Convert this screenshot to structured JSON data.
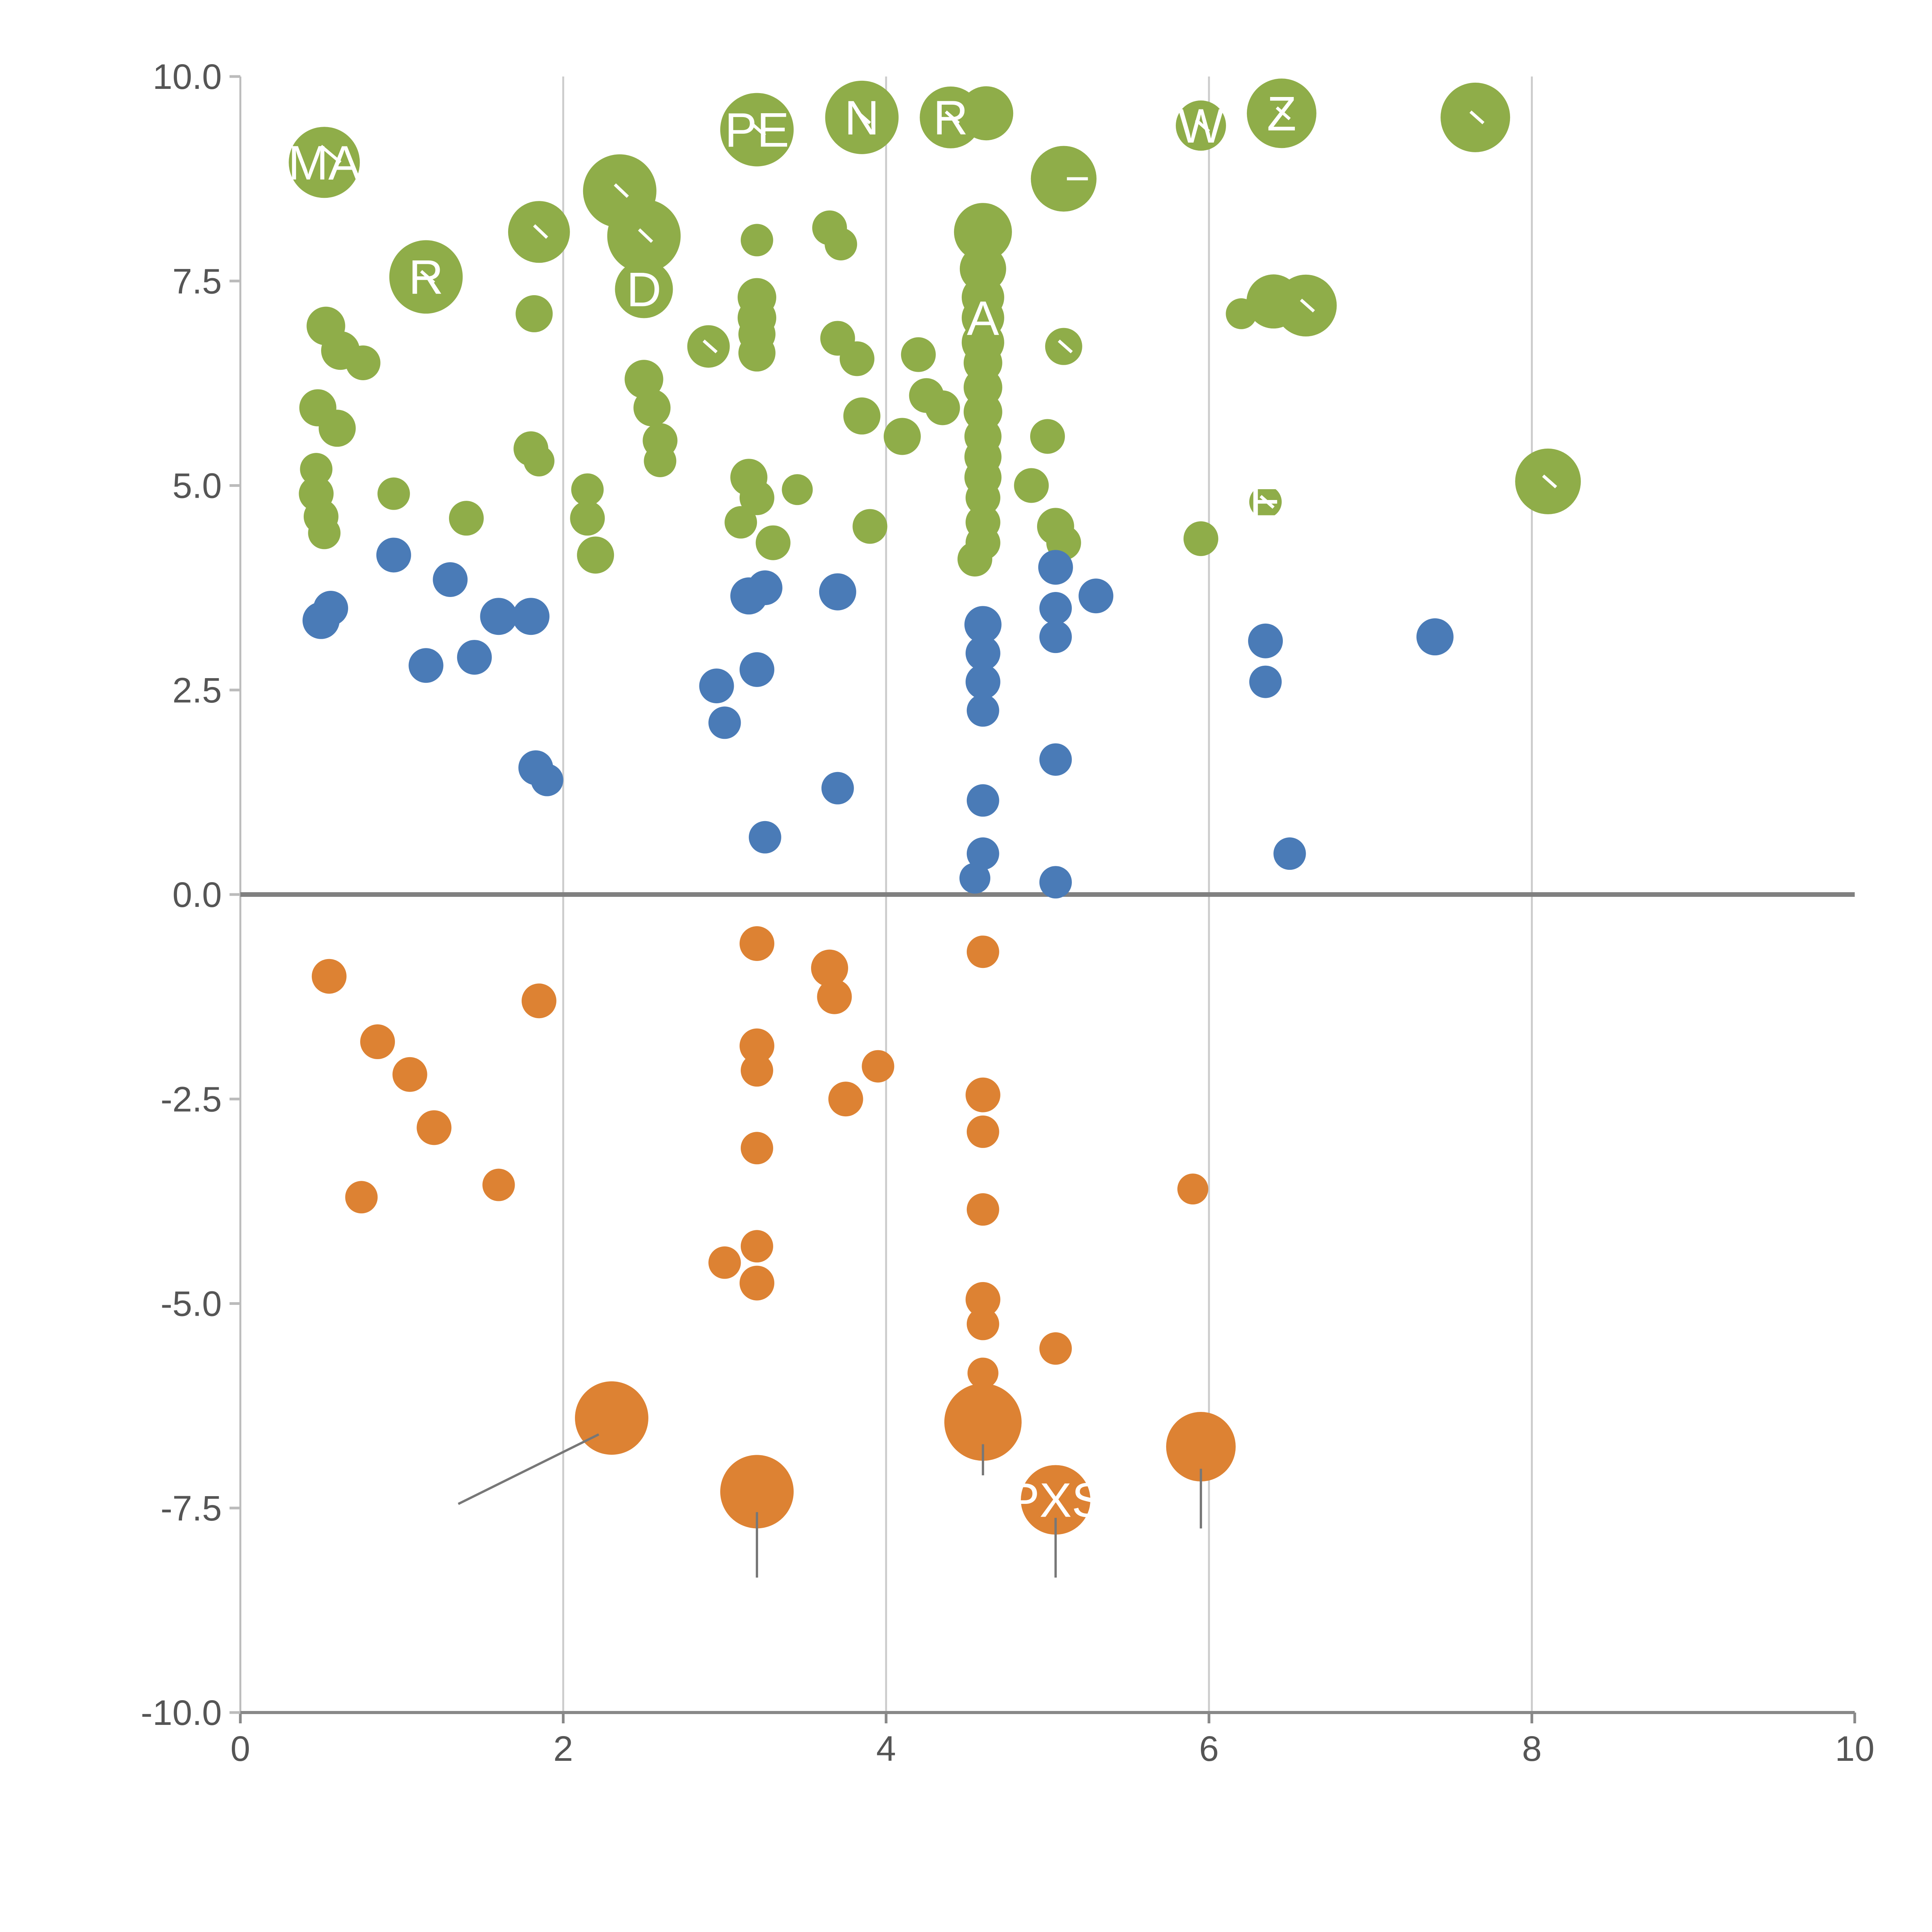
{
  "page": {
    "background": "#ffffff"
  },
  "chart_data": {
    "type": "scatter",
    "title": "",
    "xlabel": "",
    "ylabel": "",
    "xlim": [
      0,
      10
    ],
    "ylim": [
      -10,
      10
    ],
    "xticks": {
      "values": [
        0,
        2,
        4,
        6,
        8,
        10
      ],
      "labels": [
        "0",
        "2",
        "4",
        "6",
        "8",
        "10"
      ]
    },
    "yticks": {
      "values": [
        -10,
        -7.5,
        -5,
        -2.5,
        0,
        2.5,
        5,
        7.5,
        10
      ],
      "labels": [
        "-10.0",
        "-7.5",
        "-5.0",
        "-2.5",
        "0.0",
        "2.5",
        "5.0",
        "7.5",
        "10.0"
      ]
    },
    "grid": {
      "vertical_x": [
        2,
        4,
        6,
        8
      ],
      "color": "#cccccc"
    },
    "zero_line": {
      "y": 0,
      "color": "#808080"
    },
    "axis_colors": {
      "bottom_spine": "#888888",
      "left_spine": "#bbbbbb",
      "tick_label": "#555555"
    },
    "point_label_color": "#ffffff",
    "series": [
      {
        "name": "group-green",
        "color": "#8fad49",
        "points": [
          [
            0.52,
            8.95,
            92,
            "MA"
          ],
          [
            1.15,
            7.55,
            95,
            "R"
          ],
          [
            1.85,
            8.1,
            80
          ],
          [
            2.35,
            8.6,
            95
          ],
          [
            2.5,
            8.05,
            95
          ],
          [
            2.5,
            7.4,
            75,
            "D"
          ],
          [
            3.2,
            9.35,
            95,
            "PE"
          ],
          [
            3.85,
            9.5,
            95,
            "N"
          ],
          [
            4.4,
            9.5,
            80,
            "R"
          ],
          [
            4.62,
            9.55,
            70
          ],
          [
            5.95,
            9.4,
            65,
            "W"
          ],
          [
            6.45,
            9.55,
            90,
            "Z"
          ],
          [
            7.65,
            9.5,
            90
          ],
          [
            5.1,
            8.75,
            85
          ],
          [
            4.6,
            8.1,
            75
          ],
          [
            4.6,
            7.65,
            60
          ],
          [
            4.6,
            7.3,
            55
          ],
          [
            4.6,
            7.05,
            55,
            "A"
          ],
          [
            4.6,
            6.75,
            55
          ],
          [
            4.6,
            6.5,
            50
          ],
          [
            4.6,
            6.2,
            50
          ],
          [
            4.6,
            5.9,
            50
          ],
          [
            4.6,
            5.6,
            48
          ],
          [
            4.6,
            5.35,
            48
          ],
          [
            4.6,
            5.1,
            48
          ],
          [
            4.6,
            4.85,
            45
          ],
          [
            4.6,
            4.55,
            45
          ],
          [
            4.6,
            4.3,
            45
          ],
          [
            4.55,
            4.1,
            45
          ],
          [
            6.4,
            7.25,
            70
          ],
          [
            6.6,
            7.2,
            80
          ],
          [
            6.2,
            7.1,
            40
          ],
          [
            6.35,
            4.8,
            42,
            "E"
          ],
          [
            8.1,
            5.05,
            85
          ],
          [
            0.53,
            6.95,
            50
          ],
          [
            0.62,
            6.65,
            50
          ],
          [
            0.76,
            6.5,
            45
          ],
          [
            0.48,
            5.95,
            48
          ],
          [
            0.6,
            5.7,
            48
          ],
          [
            0.47,
            5.2,
            42
          ],
          [
            0.47,
            4.9,
            45
          ],
          [
            0.5,
            4.62,
            45
          ],
          [
            0.52,
            4.42,
            42
          ],
          [
            0.95,
            4.9,
            42
          ],
          [
            1.4,
            4.6,
            45
          ],
          [
            1.82,
            7.1,
            48
          ],
          [
            1.8,
            5.45,
            45
          ],
          [
            1.85,
            5.3,
            40
          ],
          [
            2.15,
            4.95,
            42
          ],
          [
            2.15,
            4.6,
            45
          ],
          [
            2.2,
            4.15,
            48
          ],
          [
            2.5,
            6.3,
            50
          ],
          [
            2.55,
            5.95,
            48
          ],
          [
            2.6,
            5.55,
            45
          ],
          [
            2.6,
            5.3,
            42
          ],
          [
            2.9,
            6.7,
            55
          ],
          [
            3.2,
            8.0,
            42
          ],
          [
            3.2,
            7.3,
            50
          ],
          [
            3.2,
            7.05,
            50
          ],
          [
            3.2,
            6.85,
            48
          ],
          [
            3.2,
            6.62,
            48
          ],
          [
            3.15,
            5.1,
            48
          ],
          [
            3.2,
            4.85,
            45
          ],
          [
            3.1,
            4.55,
            42
          ],
          [
            3.3,
            4.3,
            45
          ],
          [
            3.45,
            4.95,
            40
          ],
          [
            3.65,
            8.15,
            45
          ],
          [
            3.72,
            7.95,
            42
          ],
          [
            3.7,
            6.8,
            45
          ],
          [
            3.82,
            6.55,
            45
          ],
          [
            3.85,
            5.85,
            48
          ],
          [
            3.9,
            4.5,
            45
          ],
          [
            4.1,
            5.6,
            48
          ],
          [
            4.2,
            6.6,
            45
          ],
          [
            4.25,
            6.1,
            45
          ],
          [
            4.35,
            5.95,
            45
          ],
          [
            4.9,
            5.0,
            45
          ],
          [
            5.0,
            5.6,
            45
          ],
          [
            5.05,
            4.5,
            48
          ],
          [
            5.1,
            4.3,
            45
          ],
          [
            5.1,
            6.7,
            48
          ],
          [
            5.95,
            4.35,
            45
          ]
        ]
      },
      {
        "name": "group-blue",
        "color": "#4a7bb7",
        "points": [
          [
            0.5,
            3.35,
            48
          ],
          [
            0.56,
            3.5,
            45
          ],
          [
            0.95,
            4.15,
            45
          ],
          [
            1.15,
            2.8,
            45
          ],
          [
            1.3,
            3.85,
            45
          ],
          [
            1.45,
            2.9,
            45
          ],
          [
            1.6,
            3.4,
            48
          ],
          [
            1.8,
            3.4,
            48
          ],
          [
            1.83,
            1.55,
            45
          ],
          [
            1.9,
            1.4,
            42
          ],
          [
            2.95,
            2.55,
            45
          ],
          [
            3.0,
            2.1,
            42
          ],
          [
            3.2,
            2.75,
            45
          ],
          [
            3.15,
            3.65,
            48
          ],
          [
            3.25,
            3.75,
            45
          ],
          [
            3.25,
            0.7,
            42
          ],
          [
            3.7,
            3.7,
            48
          ],
          [
            3.7,
            1.3,
            42
          ],
          [
            4.6,
            3.3,
            48
          ],
          [
            4.6,
            2.95,
            45
          ],
          [
            4.6,
            2.6,
            45
          ],
          [
            4.6,
            2.25,
            42
          ],
          [
            4.6,
            1.15,
            42
          ],
          [
            4.6,
            0.5,
            42
          ],
          [
            4.55,
            0.2,
            40
          ],
          [
            5.05,
            4.0,
            45
          ],
          [
            5.05,
            3.5,
            42
          ],
          [
            5.05,
            3.15,
            42
          ],
          [
            5.05,
            1.65,
            42
          ],
          [
            5.05,
            0.15,
            42
          ],
          [
            5.3,
            3.65,
            45
          ],
          [
            6.35,
            3.1,
            45
          ],
          [
            6.35,
            2.6,
            42
          ],
          [
            6.5,
            0.5,
            42
          ],
          [
            7.4,
            3.15,
            48
          ]
        ]
      },
      {
        "name": "group-orange",
        "color": "#dd8233",
        "points": [
          [
            0.55,
            -1.0,
            45
          ],
          [
            0.85,
            -1.8,
            45
          ],
          [
            1.05,
            -2.2,
            45
          ],
          [
            1.2,
            -2.85,
            45
          ],
          [
            0.75,
            -3.7,
            42
          ],
          [
            1.6,
            -3.55,
            42
          ],
          [
            1.85,
            -1.3,
            45
          ],
          [
            3.2,
            -0.6,
            45
          ],
          [
            3.65,
            -0.9,
            48
          ],
          [
            3.68,
            -1.25,
            45
          ],
          [
            3.2,
            -1.85,
            45
          ],
          [
            3.2,
            -2.15,
            42
          ],
          [
            3.75,
            -2.5,
            45
          ],
          [
            3.95,
            -2.1,
            42
          ],
          [
            3.2,
            -3.1,
            42
          ],
          [
            3.0,
            -4.5,
            42
          ],
          [
            3.2,
            -4.3,
            42
          ],
          [
            3.2,
            -4.75,
            45
          ],
          [
            4.6,
            -0.7,
            42
          ],
          [
            4.6,
            -2.45,
            45
          ],
          [
            4.6,
            -2.9,
            42
          ],
          [
            4.6,
            -3.85,
            42
          ],
          [
            4.6,
            -4.95,
            45
          ],
          [
            4.6,
            -5.25,
            42
          ],
          [
            4.6,
            -5.85,
            40
          ],
          [
            5.05,
            -5.55,
            42
          ],
          [
            5.9,
            -3.6,
            40
          ],
          [
            2.3,
            -6.4,
            95
          ],
          [
            3.2,
            -7.3,
            95
          ],
          [
            4.6,
            -6.45,
            100
          ],
          [
            5.05,
            -7.4,
            90,
            "PXS"
          ],
          [
            5.95,
            -6.75,
            90
          ]
        ]
      }
    ],
    "annotations": {
      "white_ticks": {
        "color": "#ffffff",
        "lines": [
          [
            0.5,
            9.15,
            0.62,
            8.95
          ],
          [
            1.12,
            7.62,
            1.2,
            7.48
          ],
          [
            1.82,
            8.18,
            1.9,
            8.03
          ],
          [
            2.32,
            8.68,
            2.4,
            8.53
          ],
          [
            2.47,
            8.13,
            2.55,
            7.98
          ],
          [
            3.17,
            9.42,
            3.25,
            9.28
          ],
          [
            3.82,
            9.57,
            3.9,
            9.43
          ],
          [
            4.37,
            9.57,
            4.45,
            9.43
          ],
          [
            5.12,
            8.75,
            5.25,
            8.75
          ],
          [
            5.92,
            9.47,
            6.0,
            9.33
          ],
          [
            6.42,
            9.62,
            6.5,
            9.48
          ],
          [
            7.62,
            9.57,
            7.7,
            9.43
          ],
          [
            6.57,
            7.27,
            6.65,
            7.13
          ],
          [
            2.87,
            6.77,
            2.95,
            6.63
          ],
          [
            8.07,
            5.12,
            8.15,
            4.98
          ],
          [
            5.07,
            6.77,
            5.15,
            6.63
          ],
          [
            6.32,
            4.87,
            6.4,
            4.73
          ]
        ]
      },
      "gray_leaders": {
        "color": "#777777",
        "lines": [
          [
            2.22,
            -6.6,
            1.35,
            -7.45
          ],
          [
            3.2,
            -7.55,
            3.2,
            -8.35
          ],
          [
            5.05,
            -7.62,
            5.05,
            -8.35
          ],
          [
            5.95,
            -7.02,
            5.95,
            -7.75
          ],
          [
            4.6,
            -6.72,
            4.6,
            -7.1
          ]
        ]
      }
    }
  }
}
